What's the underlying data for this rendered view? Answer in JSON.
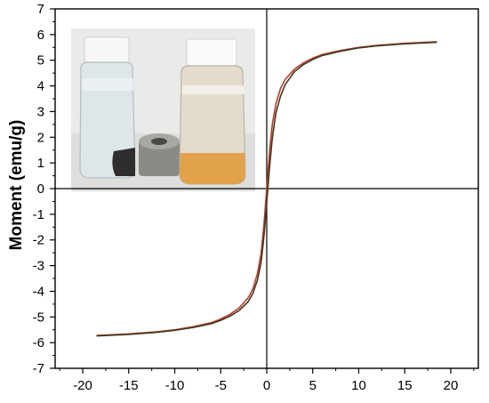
{
  "chart_data": {
    "type": "line",
    "title": "",
    "xlabel": "",
    "ylabel": "Moment (emu/g)",
    "xlim": [
      -23,
      23
    ],
    "ylim": [
      -7,
      7
    ],
    "x_ticks": [
      -20,
      -15,
      -10,
      -5,
      0,
      5,
      10,
      15,
      20
    ],
    "y_ticks": [
      -7,
      -6,
      -5,
      -4,
      -3,
      -2,
      -1,
      0,
      1,
      2,
      3,
      4,
      5,
      6,
      7
    ],
    "x_tick_labels": [
      "-20",
      "-15",
      "-10",
      "-5",
      "0",
      "5",
      "10",
      "15",
      "20"
    ],
    "y_tick_labels": [
      "-7",
      "-6",
      "-5",
      "-4",
      "-3",
      "-2",
      "-1",
      "0",
      "1",
      "2",
      "3",
      "4",
      "5",
      "6",
      "7"
    ],
    "grid": false,
    "zero_lines": true,
    "series": [
      {
        "color": "#c0392b",
        "x": [
          -18.5,
          -15,
          -12,
          -10,
          -8,
          -6,
          -5,
          -4,
          -3,
          -2,
          -1.5,
          -1,
          -0.6,
          -0.3,
          0,
          0.3,
          0.6,
          1,
          1.5,
          2,
          3,
          4,
          5,
          6,
          8,
          10,
          12,
          15,
          18.5
        ],
        "y": [
          -5.72,
          -5.66,
          -5.58,
          -5.5,
          -5.38,
          -5.22,
          -5.08,
          -4.9,
          -4.65,
          -4.25,
          -3.9,
          -3.3,
          -2.5,
          -1.4,
          0.0,
          1.4,
          2.5,
          3.3,
          3.9,
          4.25,
          4.65,
          4.9,
          5.08,
          5.22,
          5.38,
          5.5,
          5.58,
          5.66,
          5.72
        ]
      },
      {
        "color": "#3b3b1f",
        "x": [
          -18.5,
          -15,
          -12,
          -10,
          -8,
          -6,
          -5,
          -4,
          -3,
          -2,
          -1.5,
          -1,
          -0.6,
          -0.3,
          0,
          0.3,
          0.6,
          1,
          1.5,
          2,
          3,
          4,
          5,
          6,
          8,
          10,
          12,
          15,
          18.5
        ],
        "y": [
          -5.74,
          -5.68,
          -5.6,
          -5.52,
          -5.41,
          -5.26,
          -5.13,
          -4.97,
          -4.75,
          -4.4,
          -4.08,
          -3.55,
          -2.85,
          -1.85,
          -0.55,
          0.8,
          1.95,
          2.95,
          3.6,
          4.05,
          4.55,
          4.83,
          5.03,
          5.18,
          5.35,
          5.48,
          5.56,
          5.64,
          5.7
        ]
      }
    ],
    "inset": "photo-of-vials-with-magnet"
  }
}
